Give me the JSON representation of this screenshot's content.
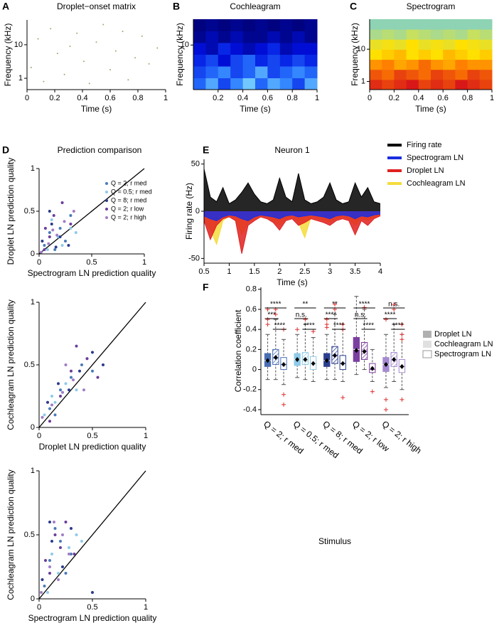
{
  "chart_data": [
    {
      "panel": "A",
      "type": "scatter",
      "title": "Droplet−onset matrix",
      "xlabel": "Time (s)",
      "ylabel": "Frequency (kHz)",
      "x": [
        0.03,
        0.08,
        0.12,
        0.17,
        0.22,
        0.27,
        0.31,
        0.36,
        0.41,
        0.45,
        0.5,
        0.55,
        0.6,
        0.64,
        0.69,
        0.73,
        0.78,
        0.83,
        0.88,
        0.94
      ],
      "y": [
        2.1,
        15,
        0.8,
        30,
        5.5,
        1.3,
        9,
        22,
        3.2,
        0.7,
        12,
        40,
        1.8,
        6.5,
        25,
        0.9,
        4.1,
        18,
        2.7,
        8
      ],
      "color": "#9aaa6a",
      "xlim": [
        0,
        1
      ],
      "xticks": [
        0,
        0.2,
        0.4,
        0.6,
        0.8,
        1
      ],
      "ylim": [
        0.46,
        55
      ],
      "yticks": [
        1,
        10
      ],
      "log_y": true
    },
    {
      "panel": "B",
      "type": "heatmap",
      "title": "Cochleagram",
      "xlabel": "Time (s)",
      "ylabel": "Frequency (kHz)",
      "xlim": [
        0,
        1
      ],
      "xticks": [
        0.2,
        0.4,
        0.6,
        0.8,
        1
      ],
      "ylim": [
        1.5,
        30
      ],
      "yticks": [
        10
      ],
      "log_y": true,
      "colormap": [
        "#00006e",
        "#0010e0",
        "#2a7cff",
        "#8ee8ff"
      ],
      "values": [
        [
          0.6,
          0.8,
          0.5,
          0.7,
          0.9,
          0.6,
          0.8,
          0.7,
          0.5,
          0.8
        ],
        [
          0.5,
          0.6,
          0.7,
          0.5,
          0.6,
          0.8,
          0.5,
          0.6,
          0.7,
          0.6
        ],
        [
          0.4,
          0.5,
          0.3,
          0.5,
          0.6,
          0.4,
          0.5,
          0.4,
          0.5,
          0.4
        ],
        [
          0.3,
          0.2,
          0.4,
          0.3,
          0.2,
          0.3,
          0.4,
          0.2,
          0.3,
          0.3
        ],
        [
          0.1,
          0.2,
          0.1,
          0.2,
          0.1,
          0.1,
          0.2,
          0.1,
          0.2,
          0.1
        ],
        [
          0.05,
          0.1,
          0.05,
          0.1,
          0.05,
          0.1,
          0.05,
          0.1,
          0.05,
          0.1
        ]
      ]
    },
    {
      "panel": "C",
      "type": "heatmap",
      "title": "Spectrogram",
      "xlabel": "Time (s)",
      "ylabel": "Frequency (kHz)",
      "xlim": [
        0,
        1
      ],
      "xticks": [
        0,
        0.2,
        0.4,
        0.6,
        0.8,
        1
      ],
      "ylim": [
        0.56,
        85
      ],
      "yticks": [
        1,
        10
      ],
      "log_y": true,
      "colormap": [
        "#7fd0c8",
        "#c8e060",
        "#ffe000",
        "#ff8000",
        "#d81818"
      ],
      "values": [
        [
          0.95,
          0.9,
          0.95,
          1,
          0.9,
          0.95,
          0.9,
          1,
          0.95,
          0.9
        ],
        [
          0.85,
          0.8,
          0.9,
          0.85,
          0.8,
          0.9,
          0.85,
          0.8,
          0.9,
          0.85
        ],
        [
          0.7,
          0.75,
          0.65,
          0.7,
          0.8,
          0.7,
          0.65,
          0.75,
          0.7,
          0.7
        ],
        [
          0.5,
          0.55,
          0.6,
          0.5,
          0.55,
          0.5,
          0.6,
          0.55,
          0.5,
          0.55
        ],
        [
          0.4,
          0.45,
          0.4,
          0.5,
          0.4,
          0.45,
          0.4,
          0.5,
          0.45,
          0.4
        ],
        [
          0.15,
          0.2,
          0.15,
          0.25,
          0.2,
          0.15,
          0.2,
          0.15,
          0.25,
          0.2
        ],
        [
          0.05,
          0.05,
          0.05,
          0.05,
          0.05,
          0.05,
          0.05,
          0.05,
          0.05,
          0.05
        ]
      ]
    },
    {
      "panel": "D",
      "type": "scatter",
      "title": "Prediction comparison",
      "xlabel": "Spectrogram LN prediction quality",
      "ylabel": "Droplet LN prediction quality",
      "xlim": [
        0,
        1
      ],
      "xticks": [
        0,
        0.5,
        1
      ],
      "ylim": [
        0,
        1
      ],
      "yticks": [
        0,
        0.5,
        1
      ],
      "identity_line": true,
      "legend": "upper right",
      "series": [
        {
          "name": "Q = 2; r med",
          "color": "#4a7ab8",
          "x": [
            0.05,
            0.1,
            0.2,
            0.25,
            0.15,
            0.3
          ],
          "y": [
            0.1,
            0.25,
            0.3,
            0.15,
            0.05,
            0.45
          ]
        },
        {
          "name": "Q = 0.5; r med",
          "color": "#8ecae6",
          "x": [
            0.08,
            0.18,
            0.3,
            0.12,
            0.22,
            0.35
          ],
          "y": [
            0.05,
            0.2,
            0.3,
            0.4,
            0.1,
            0.25
          ]
        },
        {
          "name": "Q = 8; r med",
          "color": "#2b3a8c",
          "x": [
            0.03,
            0.12,
            0.2,
            0.28,
            0.1,
            0.16
          ],
          "y": [
            0.15,
            0.35,
            0.2,
            0.1,
            0.5,
            0.08
          ]
        },
        {
          "name": "Q = 2; r low",
          "color": "#6a3d9a",
          "x": [
            0.06,
            0.14,
            0.22,
            0.3,
            0.05,
            0.1
          ],
          "y": [
            0.3,
            0.45,
            0.6,
            0.35,
            0.05,
            0.2
          ]
        },
        {
          "name": "Q = 2; r high",
          "color": "#a07cc5",
          "x": [
            0.02,
            0.09,
            0.17,
            0.24,
            0.13,
            0.33
          ],
          "y": [
            0.02,
            0.12,
            0.22,
            0.38,
            0.28,
            0.5
          ]
        }
      ]
    },
    {
      "type": "scatter",
      "xlabel": "Droplet LN prediction quality",
      "ylabel": "Cochleagram LN prediction quality",
      "xlim": [
        0,
        1
      ],
      "xticks": [
        0,
        0.5,
        1
      ],
      "ylim": [
        0,
        1
      ],
      "yticks": [
        0,
        0.5,
        1
      ],
      "identity_line": true,
      "series": [
        {
          "color": "#4a7ab8",
          "x": [
            0.1,
            0.2,
            0.3,
            0.4,
            0.15,
            0.5
          ],
          "y": [
            0.15,
            0.3,
            0.4,
            0.5,
            0.1,
            0.45
          ]
        },
        {
          "color": "#8ecae6",
          "x": [
            0.05,
            0.15,
            0.25,
            0.35,
            0.12,
            0.45
          ],
          "y": [
            0.1,
            0.2,
            0.35,
            0.3,
            0.25,
            0.55
          ]
        },
        {
          "color": "#2b3a8c",
          "x": [
            0.08,
            0.18,
            0.28,
            0.38,
            0.5,
            0.6
          ],
          "y": [
            0.2,
            0.35,
            0.3,
            0.45,
            0.6,
            0.5
          ]
        },
        {
          "color": "#6a3d9a",
          "x": [
            0.1,
            0.2,
            0.3,
            0.45,
            0.55,
            0.35
          ],
          "y": [
            0.05,
            0.25,
            0.45,
            0.55,
            0.4,
            0.65
          ]
        },
        {
          "color": "#a07cc5",
          "x": [
            0.03,
            0.12,
            0.22,
            0.32,
            0.42,
            0.25
          ],
          "y": [
            0.08,
            0.18,
            0.28,
            0.38,
            0.3,
            0.5
          ]
        }
      ]
    },
    {
      "type": "scatter",
      "xlabel": "Spectrogram LN prediction quality",
      "ylabel": "Cochleagram LN prediction quality",
      "xlim": [
        0,
        1
      ],
      "xticks": [
        0,
        0.5,
        1
      ],
      "ylim": [
        0,
        1
      ],
      "yticks": [
        0,
        0.5,
        1
      ],
      "identity_line": true,
      "series": [
        {
          "color": "#4a7ab8",
          "x": [
            0.05,
            0.1,
            0.2,
            0.3,
            0.15,
            0.25
          ],
          "y": [
            0.1,
            0.3,
            0.45,
            0.35,
            0.55,
            0.2
          ]
        },
        {
          "color": "#8ecae6",
          "x": [
            0.08,
            0.18,
            0.28,
            0.35,
            0.12,
            0.4
          ],
          "y": [
            0.05,
            0.2,
            0.4,
            0.5,
            0.35,
            0.45
          ]
        },
        {
          "color": "#2b3a8c",
          "x": [
            0.03,
            0.12,
            0.22,
            0.3,
            0.1,
            0.5
          ],
          "y": [
            0.15,
            0.45,
            0.25,
            0.55,
            0.6,
            0.05
          ]
        },
        {
          "color": "#6a3d9a",
          "x": [
            0.06,
            0.15,
            0.25,
            0.1,
            0.2,
            0.33
          ],
          "y": [
            0.3,
            0.5,
            0.6,
            0.2,
            0.4,
            0.35
          ]
        },
        {
          "color": "#a07cc5",
          "x": [
            0.02,
            0.1,
            0.18,
            0.28,
            0.22,
            0.14
          ],
          "y": [
            0.05,
            0.25,
            0.15,
            0.35,
            0.5,
            0.6
          ]
        }
      ]
    },
    {
      "panel": "E",
      "type": "area",
      "title": "Neuron 1",
      "xlabel": "Time (s)",
      "ylabel": "Firing rate (Hz)",
      "xlim": [
        0.5,
        4
      ],
      "xticks": [
        0.5,
        1,
        1.5,
        2,
        2.5,
        3,
        3.5,
        4
      ],
      "ylim": [
        -55,
        55
      ],
      "yticks": [
        -50,
        0,
        50
      ],
      "x": [
        0.5,
        0.625,
        0.75,
        0.875,
        1,
        1.125,
        1.25,
        1.375,
        1.5,
        1.625,
        1.75,
        1.875,
        2,
        2.125,
        2.25,
        2.375,
        2.5,
        2.625,
        2.75,
        2.875,
        3,
        3.125,
        3.25,
        3.375,
        3.5,
        3.625,
        3.75,
        3.875,
        4
      ],
      "series": [
        {
          "name": "Firing rate",
          "color": "#000000",
          "values": [
            45,
            15,
            10,
            25,
            8,
            12,
            20,
            30,
            18,
            10,
            8,
            12,
            35,
            15,
            10,
            40,
            12,
            8,
            10,
            15,
            30,
            12,
            8,
            10,
            30,
            15,
            25,
            10,
            8
          ]
        },
        {
          "name": "Spectrogram LN",
          "color": "#1a2ee0",
          "values": [
            -5,
            -8,
            -10,
            -6,
            -4,
            -5,
            -8,
            -10,
            -6,
            -4,
            -5,
            -6,
            -8,
            -5,
            -4,
            -6,
            -5,
            -4,
            -5,
            -6,
            -8,
            -5,
            -4,
            -5,
            -8,
            -5,
            -6,
            -4,
            -3
          ]
        },
        {
          "name": "Droplet LN",
          "color": "#e02020",
          "values": [
            -10,
            -30,
            -15,
            -8,
            -6,
            -10,
            -45,
            -15,
            -10,
            -6,
            -8,
            -12,
            -20,
            -10,
            -8,
            -15,
            -12,
            -8,
            -10,
            -12,
            -15,
            -10,
            -8,
            -10,
            -25,
            -10,
            -15,
            -8,
            -5
          ]
        },
        {
          "name": "Cochleagram LN",
          "color": "#f5dc3c",
          "values": [
            -8,
            -20,
            -35,
            -10,
            -5,
            -8,
            -25,
            -12,
            -8,
            -5,
            -6,
            -10,
            -15,
            -8,
            -6,
            -12,
            -28,
            -6,
            -8,
            -10,
            -12,
            -8,
            -6,
            -8,
            -15,
            -8,
            -10,
            -6,
            -4
          ]
        }
      ]
    },
    {
      "panel": "F",
      "type": "box",
      "xlabel": "Stimulus",
      "ylabel": "Correlation coefficient",
      "categories": [
        "Q = 2; r med",
        "Q = 0.5; r med",
        "Q = 8; r med",
        "Q = 2; r low",
        "Q = 2; r high"
      ],
      "category_colors": [
        "#4a6fb5",
        "#8fcbe8",
        "#2c3f8f",
        "#7b3fa0",
        "#a58ad0"
      ],
      "ylim": [
        -0.45,
        0.82
      ],
      "yticks": [
        -0.4,
        -0.2,
        0,
        0.2,
        0.4,
        0.6,
        0.8
      ],
      "series": [
        {
          "name": "Droplet LN",
          "style": "fill",
          "color": "#b0b0b0",
          "q1": [
            0.03,
            0.04,
            0.03,
            0.08,
            -0.02
          ],
          "median": [
            0.09,
            0.1,
            0.09,
            0.2,
            0.05
          ],
          "q3": [
            0.16,
            0.16,
            0.16,
            0.32,
            0.12
          ],
          "whisker_low": [
            -0.1,
            -0.08,
            -0.1,
            -0.05,
            -0.18
          ],
          "whisker_high": [
            0.35,
            0.35,
            0.35,
            0.73,
            0.35
          ],
          "mean": [
            0.09,
            0.1,
            0.09,
            0.19,
            0.05
          ],
          "outliers": [
            [
              0.5,
              0.6,
              0.45
            ],
            [
              0.4
            ],
            [
              0.45,
              0.5,
              0.42
            ],
            [],
            [
              0.5,
              -0.3,
              -0.4
            ]
          ]
        },
        {
          "name": "Cochleagram LN",
          "style": "hatch",
          "color": "#e0e0e0",
          "q1": [
            0.05,
            0.05,
            0.06,
            0.1,
            0.03
          ],
          "median": [
            0.12,
            0.1,
            0.14,
            0.18,
            0.1
          ],
          "q3": [
            0.2,
            0.17,
            0.23,
            0.27,
            0.17
          ],
          "whisker_low": [
            -0.1,
            -0.1,
            -0.1,
            0,
            -0.12
          ],
          "whisker_high": [
            0.5,
            0.45,
            0.55,
            0.6,
            0.45
          ],
          "mean": [
            0.12,
            0.1,
            0.14,
            0.18,
            0.1
          ],
          "outliers": [
            [
              0.55,
              0.6
            ],
            [
              0.5
            ],
            [
              0.6,
              0.65
            ],
            [
              0.62
            ],
            [
              0.6,
              0.65
            ]
          ]
        },
        {
          "name": "Spectrogram LN",
          "style": "outline",
          "color": "#ffffff",
          "q1": [
            0,
            0,
            0,
            -0.03,
            -0.03
          ],
          "median": [
            0.05,
            0.06,
            0.06,
            0,
            0.03
          ],
          "q3": [
            0.12,
            0.13,
            0.14,
            0.06,
            0.1
          ],
          "whisker_low": [
            -0.15,
            -0.12,
            -0.12,
            -0.12,
            -0.2
          ],
          "whisker_high": [
            0.3,
            0.32,
            0.4,
            0.2,
            0.35
          ],
          "mean": [
            0.05,
            0.06,
            0.06,
            0.01,
            0.03
          ],
          "outliers": [
            [
              0.4,
              -0.25,
              -0.35
            ],
            [
              0.38
            ],
            [
              0.4,
              0.45,
              -0.28
            ],
            [
              -0.22
            ],
            [
              0.45,
              0.3,
              -0.3,
              0.35
            ]
          ]
        }
      ],
      "significance": [
        [
          "****",
          "***",
          "****"
        ],
        [
          "**",
          "n.s.",
          "****"
        ],
        [
          "**",
          "****",
          "****"
        ],
        [
          "****",
          "n.s.",
          "****"
        ],
        [
          "n.s.",
          "****",
          "****"
        ]
      ]
    }
  ]
}
